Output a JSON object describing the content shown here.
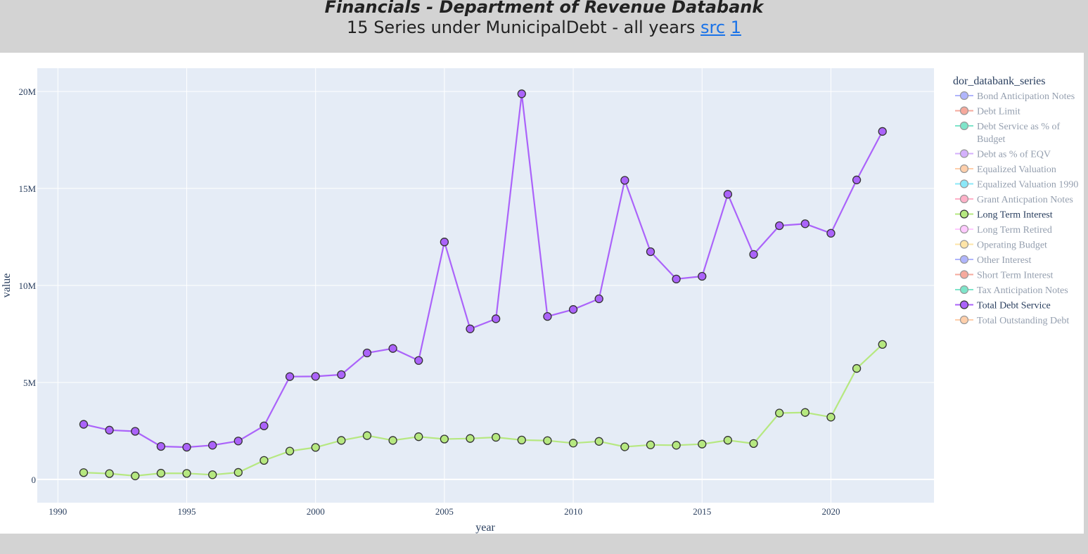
{
  "header": {
    "title": "Financials - Department of Revenue Databank",
    "subtitle_prefix": "15 Series under MunicipalDebt - all years",
    "link_src": "src",
    "link_1": "1"
  },
  "chart_data": {
    "type": "line",
    "xlabel": "year",
    "ylabel": "value",
    "xlim": [
      1989.2,
      2024.0
    ],
    "ylim": [
      -1200000,
      21200000
    ],
    "xticks": [
      1990,
      1995,
      2000,
      2005,
      2010,
      2015,
      2020
    ],
    "yticks": [
      0,
      5000000,
      10000000,
      15000000,
      20000000
    ],
    "ytick_labels": [
      "0",
      "5M",
      "10M",
      "15M",
      "20M"
    ],
    "grid": true,
    "legend_title": "dor_databank_series",
    "legend_position": "right",
    "legend": [
      {
        "name": "Bond Anticipation Notes",
        "color": "#636efa",
        "active": false
      },
      {
        "name": "Debt Limit",
        "color": "#ef553b",
        "active": false
      },
      {
        "name": "Debt Service as % of Budget",
        "color": "#00cc96",
        "active": false
      },
      {
        "name": "Debt as % of EQV",
        "color": "#ab63fa",
        "active": false
      },
      {
        "name": "Equalized Valuation",
        "color": "#ffa15a",
        "active": false
      },
      {
        "name": "Equalized Valuation 1990",
        "color": "#19d3f3",
        "active": false
      },
      {
        "name": "Grant Anticpation Notes",
        "color": "#ff6692",
        "active": false
      },
      {
        "name": "Long Term Interest",
        "color": "#b6e880",
        "active": true
      },
      {
        "name": "Long Term Retired",
        "color": "#ff97ff",
        "active": false
      },
      {
        "name": "Operating Budget",
        "color": "#fecb52",
        "active": false
      },
      {
        "name": "Other Interest",
        "color": "#636efa",
        "active": false
      },
      {
        "name": "Short Term Interest",
        "color": "#ef553b",
        "active": false
      },
      {
        "name": "Tax Anticipation Notes",
        "color": "#00cc96",
        "active": false
      },
      {
        "name": "Total Debt Service",
        "color": "#ab63fa",
        "active": true
      },
      {
        "name": "Total Outstanding Debt",
        "color": "#ffa15a",
        "active": false
      }
    ],
    "x": [
      1991,
      1992,
      1993,
      1994,
      1995,
      1996,
      1997,
      1998,
      1999,
      2000,
      2001,
      2002,
      2003,
      2004,
      2005,
      2006,
      2007,
      2008,
      2009,
      2010,
      2011,
      2012,
      2013,
      2014,
      2015,
      2016,
      2017,
      2018,
      2019,
      2020,
      2021,
      2022
    ],
    "series": [
      {
        "name": "Long Term Interest",
        "color": "#b6e880",
        "values": [
          350000,
          300000,
          180000,
          320000,
          310000,
          240000,
          360000,
          980000,
          1460000,
          1650000,
          2010000,
          2260000,
          2010000,
          2200000,
          2080000,
          2110000,
          2170000,
          2030000,
          2000000,
          1870000,
          1960000,
          1680000,
          1780000,
          1760000,
          1820000,
          2020000,
          1850000,
          3420000,
          3450000,
          3210000,
          5720000,
          6960000
        ]
      },
      {
        "name": "Total Debt Service",
        "color": "#ab63fa",
        "values": [
          2840000,
          2540000,
          2480000,
          1700000,
          1660000,
          1760000,
          1980000,
          2760000,
          5300000,
          5310000,
          5400000,
          6520000,
          6750000,
          6130000,
          12240000,
          7760000,
          8280000,
          19880000,
          8400000,
          8760000,
          9310000,
          15420000,
          11740000,
          10330000,
          10470000,
          14700000,
          11600000,
          13080000,
          13180000,
          12690000,
          15440000,
          17940000
        ]
      }
    ]
  }
}
